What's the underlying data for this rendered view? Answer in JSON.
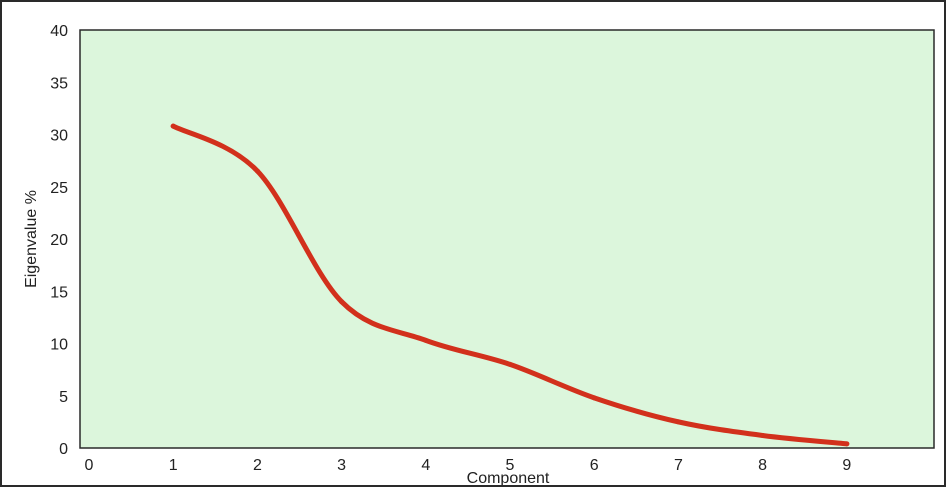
{
  "chart_data": {
    "type": "line",
    "title": "",
    "xlabel": "Component",
    "ylabel": "Eigenvalue %",
    "xlim": [
      0,
      10
    ],
    "ylim": [
      0,
      40
    ],
    "x_ticks": [
      0,
      1,
      2,
      3,
      4,
      5,
      6,
      7,
      8,
      9
    ],
    "y_ticks": [
      0,
      5,
      10,
      15,
      20,
      25,
      30,
      35,
      40
    ],
    "grid": false,
    "legend": "none",
    "series": [
      {
        "x": [
          1,
          2,
          3,
          4,
          5,
          6,
          7,
          8,
          9
        ],
        "y": [
          30.8,
          26.5,
          14.0,
          10.3,
          8.0,
          4.8,
          2.5,
          1.2,
          0.4
        ]
      }
    ]
  },
  "colors": {
    "plot_background": "#dcf6dc",
    "line": "#d2301c",
    "axis": "#2a2a2a"
  }
}
